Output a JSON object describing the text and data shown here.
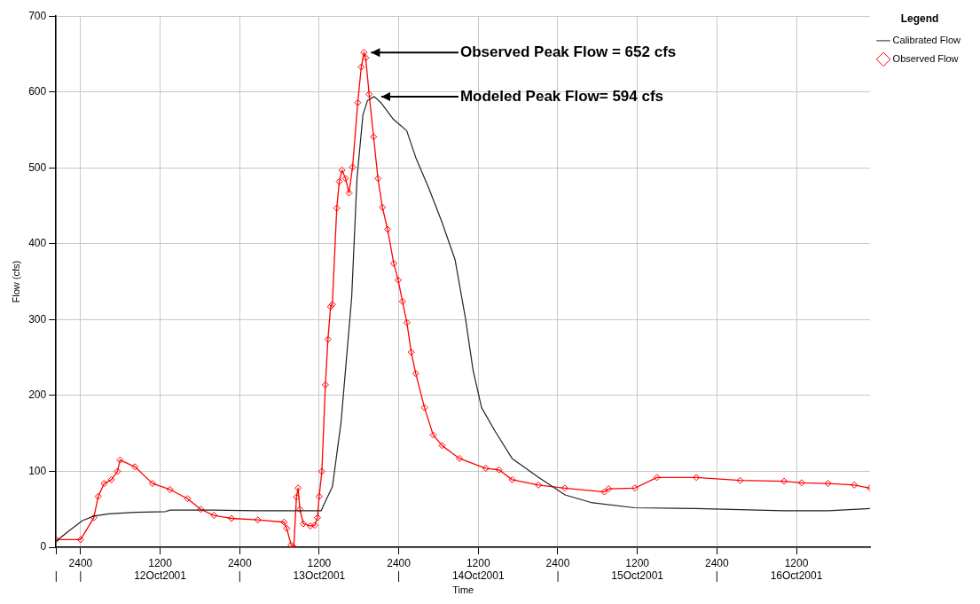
{
  "chart_data": {
    "type": "line",
    "xlabel": "Time",
    "ylabel": "Flow (cfs)",
    "legend_title": "Legend",
    "legend": "top right",
    "grid": true,
    "xlim": [
      "2001-10-11T20:18",
      "2001-10-16T23:07"
    ],
    "ylim": [
      0,
      700
    ],
    "yticks": [
      0,
      100,
      200,
      300,
      400,
      500,
      600,
      700
    ],
    "xticks": [
      {
        "value": "2001-10-11T20:18",
        "label": "\n|"
      },
      {
        "value": "2001-10-12T00:00",
        "label": "2400\n|"
      },
      {
        "value": "2001-10-12T12:00",
        "label": "1200\n12Oct2001"
      },
      {
        "value": "2001-10-13T00:00",
        "label": "2400\n|"
      },
      {
        "value": "2001-10-13T12:00",
        "label": "1200\n13Oct2001"
      },
      {
        "value": "2001-10-14T00:00",
        "label": "2400\n|"
      },
      {
        "value": "2001-10-14T12:00",
        "label": "1200\n14Oct2001"
      },
      {
        "value": "2001-10-15T00:00",
        "label": "2400\n|"
      },
      {
        "value": "2001-10-15T12:00",
        "label": "1200\n15Oct2001"
      },
      {
        "value": "2001-10-16T00:00",
        "label": "2400\n|"
      },
      {
        "value": "2001-10-16T12:00",
        "label": "1200\n16Oct2001"
      }
    ],
    "series": [
      {
        "name": "Calibrated Flow",
        "color": "#222222",
        "marker": "none",
        "x": [
          "2001-10-11T20:18",
          "2001-10-11T22:18",
          "2001-10-12T00:16",
          "2001-10-12T02:00",
          "2001-10-12T04:12",
          "2001-10-12T08:12",
          "2001-10-12T12:48",
          "2001-10-12T13:30",
          "2001-10-12T20:06",
          "2001-10-13T02:42",
          "2001-10-13T12:18",
          "2001-10-13T12:42",
          "2001-10-13T14:00",
          "2001-10-13T15:18",
          "2001-10-13T16:54",
          "2001-10-13T17:42",
          "2001-10-13T18:36",
          "2001-10-13T19:18",
          "2001-10-13T20:18",
          "2001-10-13T21:18",
          "2001-10-13T23:12",
          "2001-10-14T01:12",
          "2001-10-14T02:36",
          "2001-10-14T04:30",
          "2001-10-14T06:30",
          "2001-10-14T08:30",
          "2001-10-14T10:06",
          "2001-10-14T11:12",
          "2001-10-14T12:30",
          "2001-10-14T14:36",
          "2001-10-14T17:06",
          "2001-10-14T21:06",
          "2001-10-15T01:06",
          "2001-10-15T05:00",
          "2001-10-15T11:36",
          "2001-10-15T20:54",
          "2001-10-16T10:06",
          "2001-10-16T16:48",
          "2001-10-16T23:06"
        ],
        "values": [
          8,
          22,
          35,
          41,
          44,
          46,
          47,
          49,
          49,
          48,
          48,
          56,
          80,
          165,
          329,
          486,
          570,
          589,
          594,
          586,
          564,
          549,
          513,
          474,
          429,
          379,
          300,
          234,
          184,
          152,
          117,
          92,
          69,
          59,
          52,
          51,
          48,
          48,
          51
        ]
      },
      {
        "name": "Observed Flow",
        "color": "#ff0000",
        "marker": "diamond",
        "x": [
          "2001-10-11T20:18",
          "2001-10-12T00:00",
          "2001-10-12T02:00",
          "2001-10-12T02:39",
          "2001-10-12T03:34",
          "2001-10-12T04:38",
          "2001-10-12T05:34",
          "2001-10-12T05:57",
          "2001-10-12T08:12",
          "2001-10-12T10:51",
          "2001-10-12T13:30",
          "2001-10-12T16:08",
          "2001-10-12T18:08",
          "2001-10-12T20:07",
          "2001-10-12T22:46",
          "2001-10-13T02:44",
          "2001-10-13T06:42",
          "2001-10-13T07:06",
          "2001-10-13T07:46",
          "2001-10-13T08:10",
          "2001-10-13T08:34",
          "2001-10-13T08:49",
          "2001-10-13T09:05",
          "2001-10-13T09:37",
          "2001-10-13T10:40",
          "2001-10-13T11:20",
          "2001-10-13T11:44",
          "2001-10-13T12:00",
          "2001-10-13T12:24",
          "2001-10-13T12:56",
          "2001-10-13T13:19",
          "2001-10-13T13:43",
          "2001-10-13T13:59",
          "2001-10-13T14:39",
          "2001-10-13T15:02",
          "2001-10-13T15:26",
          "2001-10-13T15:58",
          "2001-10-13T16:30",
          "2001-10-13T17:02",
          "2001-10-13T17:49",
          "2001-10-13T18:21",
          "2001-10-13T18:45",
          "2001-10-13T19:01",
          "2001-10-13T19:32",
          "2001-10-13T20:12",
          "2001-10-13T20:52",
          "2001-10-13T21:32",
          "2001-10-13T22:19",
          "2001-10-13T23:15",
          "2001-10-13T23:55",
          "2001-10-14T00:34",
          "2001-10-14T01:14",
          "2001-10-14T01:53",
          "2001-10-14T02:34",
          "2001-10-14T03:53",
          "2001-10-14T05:12",
          "2001-10-14T06:32",
          "2001-10-14T09:10",
          "2001-10-14T13:08",
          "2001-10-14T15:08",
          "2001-10-14T17:07",
          "2001-10-14T21:05",
          "2001-10-15T01:03",
          "2001-10-15T07:01",
          "2001-10-15T07:40",
          "2001-10-15T11:38",
          "2001-10-15T14:57",
          "2001-10-15T20:54",
          "2001-10-16T03:31",
          "2001-10-16T10:08",
          "2001-10-16T12:47",
          "2001-10-16T16:46",
          "2001-10-16T20:44",
          "2001-10-16T23:07"
        ],
        "values": [
          10,
          10,
          39,
          67,
          84,
          89,
          100,
          115,
          106,
          84,
          76,
          64,
          50,
          42,
          38,
          36,
          33,
          25,
          3,
          0,
          66,
          78,
          50,
          31,
          28,
          29,
          39,
          67,
          100,
          214,
          274,
          317,
          320,
          447,
          482,
          497,
          486,
          467,
          501,
          586,
          633,
          652,
          645,
          597,
          541,
          486,
          448,
          419,
          374,
          352,
          324,
          296,
          257,
          229,
          184,
          148,
          134,
          117,
          104,
          102,
          89,
          82,
          78,
          73,
          77,
          78,
          92,
          92,
          88,
          87,
          85,
          84,
          82,
          78
        ]
      }
    ],
    "annotations": [
      {
        "text": "Observed Peak Flow = 652 cfs",
        "x": "2001-10-13T18:45",
        "y": 652
      },
      {
        "text": "Modeled Peak Flow= 594 cfs",
        "x": "2001-10-13T20:18",
        "y": 594
      }
    ]
  }
}
